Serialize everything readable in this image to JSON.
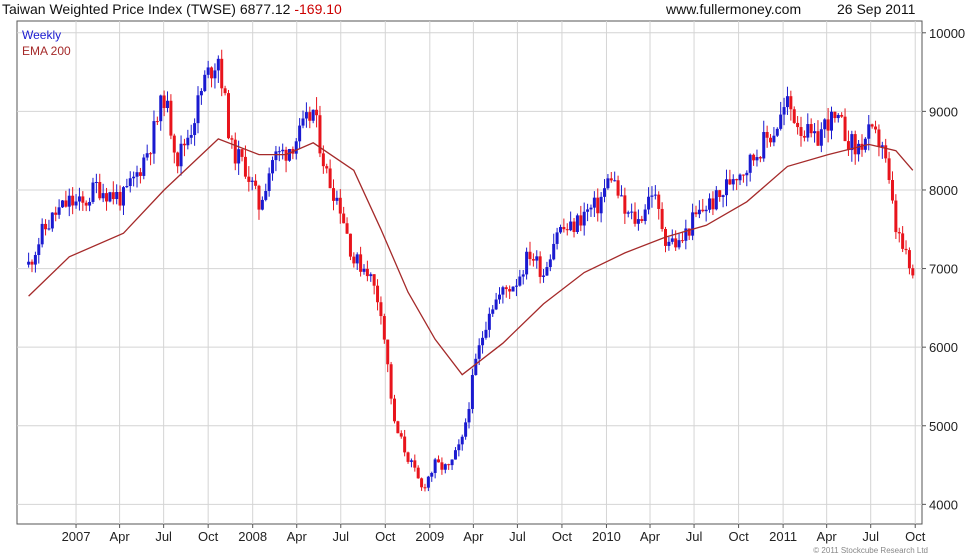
{
  "header": {
    "title": "Taiwan Weighted Price Index (TWSE)",
    "last": "6877.12",
    "change": "-169.10",
    "website": "www.fullermoney.com",
    "date": "26 Sep 2011"
  },
  "copyright": "© 2011 Stockcube Research Ltd",
  "colors": {
    "up": "#1a1ad0",
    "down": "#e8141c",
    "ema": "#a52a2a",
    "grid": "#d4d4d4"
  },
  "chart_data": {
    "type": "line",
    "series": [
      {
        "name": "Weekly",
        "kind": "candles-close",
        "x": [
          "2006-09-25",
          "2006-10-23",
          "2006-11-20",
          "2006-12-18",
          "2007-01-15",
          "2007-02-12",
          "2007-03-12",
          "2007-04-09",
          "2007-05-07",
          "2007-06-04",
          "2007-07-02",
          "2007-07-30",
          "2007-08-27",
          "2007-09-24",
          "2007-10-22",
          "2007-11-19",
          "2007-12-17",
          "2008-01-14",
          "2008-02-11",
          "2008-03-10",
          "2008-04-07",
          "2008-05-05",
          "2008-06-02",
          "2008-06-30",
          "2008-07-28",
          "2008-08-25",
          "2008-09-22",
          "2008-10-20",
          "2008-11-17",
          "2008-12-15",
          "2009-01-12",
          "2009-02-09",
          "2009-03-09",
          "2009-04-06",
          "2009-05-04",
          "2009-06-01",
          "2009-06-29",
          "2009-07-27",
          "2009-08-24",
          "2009-09-21",
          "2009-10-19",
          "2009-11-16",
          "2009-12-14",
          "2010-01-11",
          "2010-02-08",
          "2010-03-08",
          "2010-04-05",
          "2010-05-03",
          "2010-05-31",
          "2010-06-28",
          "2010-07-26",
          "2010-08-23",
          "2010-09-20",
          "2010-10-18",
          "2010-11-15",
          "2010-12-13",
          "2011-01-10",
          "2011-02-07",
          "2011-03-07",
          "2011-04-04",
          "2011-05-02",
          "2011-05-30",
          "2011-06-27",
          "2011-07-25",
          "2011-08-22",
          "2011-09-19",
          "2011-09-26"
        ],
        "values": [
          7050,
          7450,
          7700,
          7850,
          7800,
          8050,
          7950,
          7900,
          8200,
          8600,
          9200,
          8400,
          8800,
          9400,
          9700,
          8500,
          8300,
          7800,
          8400,
          8500,
          8700,
          9000,
          8200,
          7800,
          7100,
          7000,
          6500,
          5000,
          4600,
          4200,
          4500,
          4450,
          4800,
          5800,
          6500,
          6700,
          6850,
          7200,
          6950,
          7500,
          7500,
          7700,
          7800,
          8200,
          7700,
          7600,
          8000,
          7400,
          7300,
          7600,
          7800,
          7900,
          8200,
          8300,
          8550,
          8750,
          9100,
          8800,
          8600,
          8900,
          8800,
          8500,
          8700,
          8600,
          7500,
          7000,
          6877.12
        ]
      },
      {
        "name": "EMA 200",
        "x": [
          "2006-09-25",
          "2006-12-18",
          "2007-04-09",
          "2007-07-02",
          "2007-10-22",
          "2008-01-14",
          "2008-03-10",
          "2008-05-05",
          "2008-07-28",
          "2008-09-22",
          "2008-11-17",
          "2009-01-12",
          "2009-03-09",
          "2009-06-01",
          "2009-08-24",
          "2009-11-16",
          "2010-02-08",
          "2010-05-03",
          "2010-07-26",
          "2010-10-18",
          "2011-01-10",
          "2011-04-04",
          "2011-06-27",
          "2011-08-22",
          "2011-09-26"
        ],
        "values": [
          6650,
          7150,
          7450,
          8000,
          8650,
          8450,
          8450,
          8600,
          8250,
          7500,
          6700,
          6100,
          5650,
          6050,
          6550,
          6950,
          7200,
          7400,
          7550,
          7850,
          8300,
          8450,
          8580,
          8500,
          8250
        ]
      }
    ],
    "ylim": [
      3750,
      10150
    ],
    "y_ticks": [
      "4000",
      "5000",
      "6000",
      "7000",
      "8000",
      "9000",
      "10000"
    ],
    "xlim": [
      "2006-09-01",
      "2011-10-15"
    ],
    "x_ticks": [
      {
        "label": "2007",
        "date": "2007-01-01"
      },
      {
        "label": "Apr",
        "date": "2007-04-01"
      },
      {
        "label": "Jul",
        "date": "2007-07-01"
      },
      {
        "label": "Oct",
        "date": "2007-10-01"
      },
      {
        "label": "2008",
        "date": "2008-01-01"
      },
      {
        "label": "Apr",
        "date": "2008-04-01"
      },
      {
        "label": "Jul",
        "date": "2008-07-01"
      },
      {
        "label": "Oct",
        "date": "2008-10-01"
      },
      {
        "label": "2009",
        "date": "2009-01-01"
      },
      {
        "label": "Apr",
        "date": "2009-04-01"
      },
      {
        "label": "Jul",
        "date": "2009-07-01"
      },
      {
        "label": "Oct",
        "date": "2009-10-01"
      },
      {
        "label": "2010",
        "date": "2010-01-01"
      },
      {
        "label": "Apr",
        "date": "2010-04-01"
      },
      {
        "label": "Jul",
        "date": "2010-07-01"
      },
      {
        "label": "Oct",
        "date": "2010-10-01"
      },
      {
        "label": "2011",
        "date": "2011-01-01"
      },
      {
        "label": "Apr",
        "date": "2011-04-01"
      },
      {
        "label": "Jul",
        "date": "2011-07-01"
      },
      {
        "label": "Oct",
        "date": "2011-10-01"
      }
    ],
    "grid": true,
    "legend": "top-left"
  }
}
